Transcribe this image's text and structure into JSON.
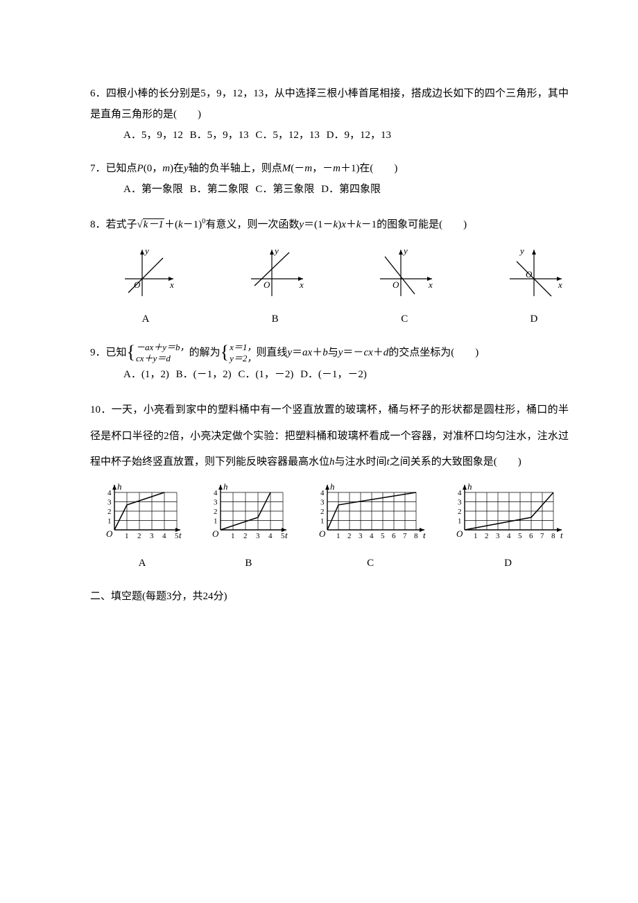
{
  "q6": {
    "num": "6．",
    "text": "四根小棒的长分别是5，9，12，13，从中选择三根小棒首尾相接，搭成边长如下的四个三角形，其中是直角三角形的是(　　)",
    "optA": "A．5，9，12",
    "optB": "B．5，9，13",
    "optC": "C．5，12，13",
    "optD": "D．9，12，13"
  },
  "q7": {
    "num": "7．",
    "text_prefix": "已知点",
    "text_p": "P",
    "text_mid1": "(0，",
    "text_m": "m",
    "text_mid2": ")在",
    "text_y": "y",
    "text_mid3": "轴的负半轴上，则点",
    "text_M": "M",
    "text_mid4": "(－",
    "text_m2": "m",
    "text_mid5": "，－",
    "text_m3": "m",
    "text_tail": "＋1)在(　　)",
    "optA": "A．第一象限",
    "optB": "B．第二象限",
    "optC": "C．第三象限",
    "optD": "D．第四象限"
  },
  "q8": {
    "num": "8．",
    "prefix": "若式子",
    "sqrt_content": "k－1",
    "mid1": "＋(",
    "k1": "k",
    "mid2": "－1)",
    "sup": "0",
    "mid3": "有意义，则一次函数",
    "y": "y",
    "eq": "＝(1－",
    "k2": "k",
    "mid4": ")",
    "x": "x",
    "plus": "＋",
    "k3": "k",
    "tail": "－1的图象可能是(　　)",
    "labels": {
      "a": "A",
      "b": "B",
      "c": "C",
      "d": "D"
    },
    "axis_y": "y",
    "axis_x": "x",
    "origin": "O"
  },
  "q9": {
    "num": "9．",
    "prefix": "已知",
    "sys_line1": "－ax＋y＝b，",
    "sys_line2": "cx＋y＝d",
    "mid1": "的解为",
    "sol_line1": "x＝1，",
    "sol_line2": "y＝2，",
    "mid2": "则直线",
    "y": "y",
    "eq1": "＝",
    "ax": "ax",
    "plus1": "＋",
    "b": "b",
    "and": "与",
    "y2": "y",
    "eq2": "＝－",
    "cx": "cx",
    "plus2": "＋",
    "d": "d",
    "tail": "的交点坐标为(　　)",
    "optA": "A．(1，2)",
    "optB": "B．(－1，2)",
    "optC": "C．(1，－2)",
    "optD": "D．(－1，－2)"
  },
  "q10": {
    "num": "10．",
    "text": "一天，小亮看到家中的塑料桶中有一个竖直放置的玻璃杯，桶与杯子的形状都是圆柱形，桶口的半径是杯口半径的2倍，小亮决定做个实验：把塑料桶和玻璃杯看成一个容器，对准杯口均匀注水，注水过程中杯子始终竖直放置，则下列能反映容器最高水位",
    "h": "h",
    "text2": "与注水时间",
    "t": "t",
    "text3": "之间关系的大致图象是(　　)",
    "labels": {
      "a": "A",
      "b": "B",
      "c": "C",
      "d": "D"
    },
    "axis_h": "h",
    "axis_t": "t",
    "origin": "O",
    "yticks": [
      "1",
      "2",
      "3",
      "4"
    ],
    "short_xticks": [
      "1",
      "2",
      "3",
      "4",
      "5"
    ],
    "long_xticks": [
      "1",
      "2",
      "3",
      "4",
      "5",
      "6",
      "7",
      "8"
    ]
  },
  "section2": "二、填空题(每题3分，共24分)"
}
